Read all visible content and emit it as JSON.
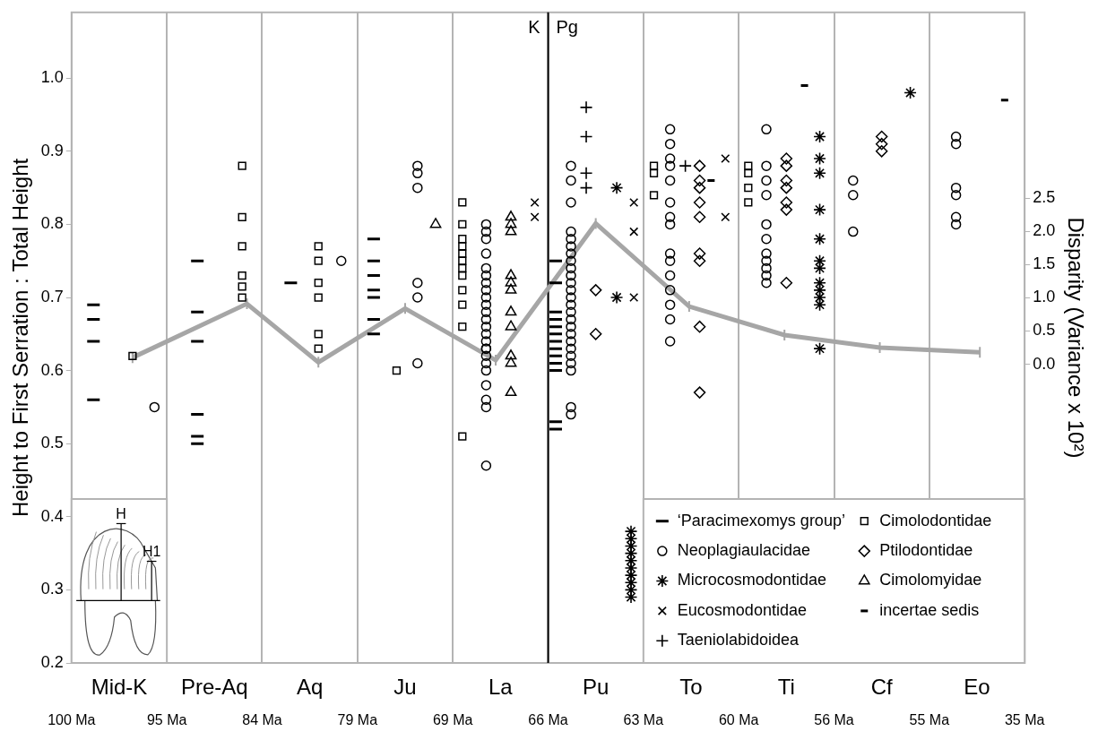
{
  "chart_data": {
    "type": "scatter",
    "ylabel": "Height to First Serration : Total Height",
    "y2label": "Disparity (Variance x 10²)",
    "xlim": [
      0,
      10
    ],
    "xticks": [
      {
        "value": 0.5,
        "label": "Mid-K"
      },
      {
        "value": 1.5,
        "label": "Pre-Aq"
      },
      {
        "value": 2.5,
        "label": "Aq"
      },
      {
        "value": 3.5,
        "label": "Ju"
      },
      {
        "value": 4.5,
        "label": "La"
      },
      {
        "value": 5.5,
        "label": "Pu"
      },
      {
        "value": 6.5,
        "label": "To"
      },
      {
        "value": 7.5,
        "label": "Ti"
      },
      {
        "value": 8.5,
        "label": "Cf"
      },
      {
        "value": 9.5,
        "label": "Eo"
      }
    ],
    "boundary_ticks": [
      {
        "value": 0,
        "label": "100 Ma"
      },
      {
        "value": 1,
        "label": "95 Ma"
      },
      {
        "value": 2,
        "label": "84 Ma"
      },
      {
        "value": 3,
        "label": "79 Ma"
      },
      {
        "value": 4,
        "label": "69 Ma"
      },
      {
        "value": 5,
        "label": "66 Ma"
      },
      {
        "value": 6,
        "label": "63 Ma"
      },
      {
        "value": 7,
        "label": "60 Ma"
      },
      {
        "value": 8,
        "label": "56 Ma"
      },
      {
        "value": 9,
        "label": "55 Ma"
      },
      {
        "value": 10,
        "label": "35 Ma"
      }
    ],
    "ylim": [
      0.2,
      1.09
    ],
    "yticks": [
      0.2,
      0.3,
      0.4,
      0.5,
      0.6,
      0.7,
      0.8,
      0.9,
      {
        "value": 1,
        "label": "1.0"
      }
    ],
    "y2lim": [
      -4.5,
      5.3
    ],
    "y2ticks": [
      {
        "value": 0,
        "label": "0.0"
      },
      0.5,
      {
        "value": 1,
        "label": "1.0"
      },
      1.5,
      {
        "value": 2,
        "label": "2.0"
      },
      2.5
    ],
    "grid": true,
    "legend": "lower right",
    "annotations": {
      "boundary": 5,
      "left": "K",
      "right": "Pg"
    },
    "inset_labels": [
      "H",
      "H1"
    ],
    "series": [
      {
        "name": "‘Paracimexomys group’",
        "marker": "dash",
        "color": "#000000",
        "x": [
          0.23,
          0.23,
          0.23,
          0.23,
          1.32,
          1.32,
          1.32,
          1.32,
          1.32,
          1.32,
          2.3,
          3.17,
          3.17,
          3.17,
          3.17,
          3.17,
          3.17,
          3.17,
          5.08,
          5.08,
          5.08,
          5.08,
          5.08,
          5.08,
          5.08,
          5.08,
          5.08,
          5.08,
          5.08,
          5.08,
          5.08
        ],
        "values": [
          0.69,
          0.67,
          0.64,
          0.56,
          0.75,
          0.68,
          0.64,
          0.54,
          0.51,
          0.5,
          0.72,
          0.78,
          0.75,
          0.73,
          0.71,
          0.7,
          0.67,
          0.65,
          0.75,
          0.72,
          0.68,
          0.67,
          0.66,
          0.65,
          0.64,
          0.63,
          0.62,
          0.61,
          0.6,
          0.53,
          0.52
        ]
      },
      {
        "name": "Neoplagiaulacidae",
        "marker": "circle",
        "color": "#000000",
        "x": [
          0.87,
          2.83,
          3.63,
          3.63,
          3.63,
          3.63,
          3.63,
          3.63,
          4.35,
          4.35,
          4.35,
          4.35,
          4.35,
          4.35,
          4.35,
          4.35,
          4.35,
          4.35,
          4.35,
          4.35,
          4.35,
          4.35,
          4.35,
          4.35,
          4.35,
          4.35,
          4.35,
          4.35,
          4.35,
          4.35,
          4.35,
          4.35,
          5.24,
          5.24,
          5.24,
          5.24,
          5.24,
          5.24,
          5.24,
          5.24,
          5.24,
          5.24,
          5.24,
          5.24,
          5.24,
          5.24,
          5.24,
          5.24,
          5.24,
          5.24,
          5.24,
          5.24,
          5.24,
          5.24,
          5.24,
          5.24,
          5.24,
          6.28,
          6.28,
          6.28,
          6.28,
          6.28,
          6.28,
          6.28,
          6.28,
          6.28,
          6.28,
          6.28,
          6.28,
          6.28,
          6.28,
          6.28,
          7.29,
          7.29,
          7.29,
          7.29,
          7.29,
          7.29,
          7.29,
          7.29,
          7.29,
          7.29,
          7.29,
          8.2,
          8.2,
          8.2,
          9.28,
          9.28,
          9.28,
          9.28,
          9.28,
          9.28
        ],
        "values": [
          0.55,
          0.75,
          0.88,
          0.87,
          0.85,
          0.72,
          0.7,
          0.61,
          0.8,
          0.79,
          0.78,
          0.76,
          0.74,
          0.73,
          0.72,
          0.71,
          0.7,
          0.69,
          0.68,
          0.67,
          0.66,
          0.65,
          0.64,
          0.63,
          0.63,
          0.62,
          0.61,
          0.6,
          0.58,
          0.56,
          0.55,
          0.47,
          0.88,
          0.86,
          0.83,
          0.79,
          0.78,
          0.77,
          0.76,
          0.75,
          0.74,
          0.73,
          0.72,
          0.71,
          0.7,
          0.69,
          0.68,
          0.67,
          0.66,
          0.65,
          0.64,
          0.63,
          0.62,
          0.61,
          0.6,
          0.55,
          0.54,
          0.93,
          0.91,
          0.89,
          0.88,
          0.86,
          0.83,
          0.81,
          0.8,
          0.76,
          0.75,
          0.73,
          0.71,
          0.69,
          0.67,
          0.64,
          0.93,
          0.88,
          0.86,
          0.84,
          0.8,
          0.78,
          0.76,
          0.75,
          0.74,
          0.73,
          0.72,
          0.86,
          0.84,
          0.79,
          0.92,
          0.91,
          0.85,
          0.84,
          0.81,
          0.8
        ]
      },
      {
        "name": "Microcosmodontidae",
        "marker": "asterisk",
        "color": "#000000",
        "x": [
          5.72,
          5.72,
          5.87,
          5.87,
          5.87,
          5.87,
          5.87,
          5.87,
          5.87,
          5.87,
          5.87,
          5.87,
          7.85,
          7.85,
          7.85,
          7.85,
          7.85,
          7.85,
          7.85,
          7.85,
          7.85,
          7.85,
          7.85,
          7.85,
          8.8
        ],
        "values": [
          0.85,
          0.7,
          0.38,
          0.37,
          0.36,
          0.35,
          0.34,
          0.33,
          0.32,
          0.31,
          0.3,
          0.29,
          0.92,
          0.89,
          0.87,
          0.82,
          0.78,
          0.75,
          0.74,
          0.72,
          0.71,
          0.7,
          0.69,
          0.63,
          0.98
        ]
      },
      {
        "name": "Eucosmodontidae",
        "marker": "x",
        "color": "#000000",
        "x": [
          4.86,
          4.86,
          5.9,
          5.9,
          5.9,
          6.86,
          6.86
        ],
        "values": [
          0.83,
          0.81,
          0.83,
          0.79,
          0.7,
          0.89,
          0.81
        ]
      },
      {
        "name": "Taeniolabidoidea",
        "marker": "plus",
        "color": "#000000",
        "x": [
          5.4,
          5.4,
          5.4,
          5.4,
          6.44
        ],
        "values": [
          0.96,
          0.92,
          0.87,
          0.85,
          0.88
        ]
      },
      {
        "name": "Cimolodontidae",
        "marker": "square",
        "color": "#000000",
        "x": [
          0.64,
          1.79,
          1.79,
          1.79,
          1.79,
          1.79,
          1.79,
          2.59,
          2.59,
          2.59,
          2.59,
          2.59,
          2.59,
          3.41,
          4.1,
          4.1,
          4.1,
          4.1,
          4.1,
          4.1,
          4.1,
          4.1,
          4.1,
          4.1,
          4.1,
          4.1,
          6.11,
          6.11,
          6.11,
          7.1,
          7.1,
          7.1,
          7.1
        ],
        "values": [
          0.62,
          0.88,
          0.81,
          0.77,
          0.73,
          0.715,
          0.7,
          0.77,
          0.75,
          0.72,
          0.7,
          0.65,
          0.63,
          0.6,
          0.83,
          0.8,
          0.78,
          0.77,
          0.76,
          0.75,
          0.74,
          0.73,
          0.71,
          0.69,
          0.66,
          0.51,
          0.88,
          0.87,
          0.84,
          0.88,
          0.87,
          0.85,
          0.83
        ]
      },
      {
        "name": "Ptilodontidae",
        "marker": "diamond",
        "color": "#000000",
        "x": [
          5.5,
          5.5,
          6.59,
          6.59,
          6.59,
          6.59,
          6.59,
          6.59,
          6.59,
          6.59,
          6.59,
          7.5,
          7.5,
          7.5,
          7.5,
          7.5,
          7.5,
          7.5,
          8.5,
          8.5,
          8.5
        ],
        "values": [
          0.71,
          0.65,
          0.88,
          0.86,
          0.85,
          0.83,
          0.81,
          0.76,
          0.75,
          0.66,
          0.57,
          0.89,
          0.88,
          0.86,
          0.85,
          0.83,
          0.82,
          0.72,
          0.92,
          0.91,
          0.9
        ]
      },
      {
        "name": "Cimolomyidae",
        "marker": "triangle",
        "color": "#000000",
        "x": [
          3.82,
          4.61,
          4.61,
          4.61,
          4.61,
          4.61,
          4.61,
          4.61,
          4.61,
          4.61,
          4.61,
          4.61
        ],
        "values": [
          0.8,
          0.81,
          0.8,
          0.79,
          0.73,
          0.72,
          0.71,
          0.68,
          0.66,
          0.62,
          0.61,
          0.57
        ]
      },
      {
        "name": "incertae sedis",
        "marker": "short_dash",
        "color": "#000000",
        "x": [
          6.71,
          7.69,
          9.79
        ],
        "values": [
          0.86,
          0.99,
          0.97
        ]
      },
      {
        "type": "line",
        "axis": "y2",
        "marker": "tick",
        "color": "#a6a6a6",
        "x": [
          0.64,
          1.84,
          2.59,
          3.5,
          4.45,
          5.5,
          6.48,
          7.48,
          8.48,
          9.53
        ],
        "values": [
          0.1,
          0.91,
          0.03,
          0.84,
          0.06,
          2.12,
          0.87,
          0.44,
          0.25,
          0.18
        ]
      }
    ]
  }
}
